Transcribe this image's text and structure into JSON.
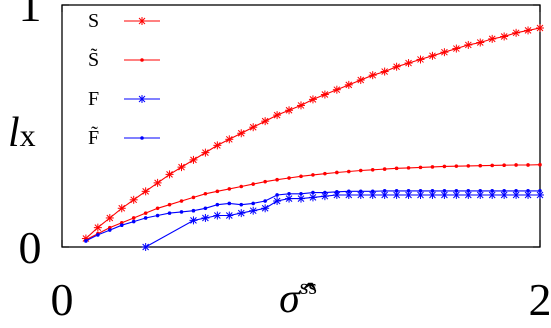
{
  "chart_data": {
    "type": "line",
    "title": "",
    "xlabel": "σ̂",
    "xlabel_superscript": "ss",
    "ylabel": "l",
    "ylabel_subscript": "x",
    "xlim": [
      0,
      2
    ],
    "ylim": [
      0,
      1
    ],
    "x_ticks": [
      "0",
      "2"
    ],
    "y_ticks": [
      "0",
      "1"
    ],
    "grid": false,
    "legend_position": "top-left",
    "series": [
      {
        "name": "S",
        "color": "#ff0000",
        "marker": "star",
        "x": [
          0.1,
          0.15,
          0.2,
          0.25,
          0.3,
          0.35,
          0.4,
          0.45,
          0.5,
          0.55,
          0.6,
          0.65,
          0.7,
          0.75,
          0.8,
          0.85,
          0.9,
          0.95,
          1.0,
          1.05,
          1.1,
          1.15,
          1.2,
          1.25,
          1.3,
          1.35,
          1.4,
          1.45,
          1.5,
          1.55,
          1.6,
          1.65,
          1.7,
          1.75,
          1.8,
          1.85,
          1.9,
          1.95,
          2.0
        ],
        "y": [
          0.035,
          0.08,
          0.12,
          0.16,
          0.195,
          0.23,
          0.265,
          0.3,
          0.33,
          0.36,
          0.39,
          0.42,
          0.445,
          0.47,
          0.495,
          0.52,
          0.545,
          0.565,
          0.585,
          0.61,
          0.63,
          0.65,
          0.67,
          0.69,
          0.71,
          0.725,
          0.745,
          0.76,
          0.775,
          0.79,
          0.805,
          0.82,
          0.835,
          0.845,
          0.86,
          0.87,
          0.885,
          0.895,
          0.905
        ]
      },
      {
        "name": "S̃",
        "color": "#ff0000",
        "marker": "dot",
        "x": [
          0.1,
          0.15,
          0.2,
          0.25,
          0.3,
          0.35,
          0.4,
          0.45,
          0.5,
          0.55,
          0.6,
          0.65,
          0.7,
          0.75,
          0.8,
          0.85,
          0.9,
          0.95,
          1.0,
          1.05,
          1.1,
          1.15,
          1.2,
          1.25,
          1.3,
          1.35,
          1.4,
          1.45,
          1.5,
          1.55,
          1.6,
          1.65,
          1.7,
          1.75,
          1.8,
          1.85,
          1.9,
          1.95,
          2.0
        ],
        "y": [
          0.03,
          0.055,
          0.08,
          0.1,
          0.12,
          0.14,
          0.16,
          0.175,
          0.19,
          0.205,
          0.22,
          0.23,
          0.24,
          0.25,
          0.26,
          0.27,
          0.278,
          0.285,
          0.292,
          0.298,
          0.303,
          0.308,
          0.312,
          0.316,
          0.319,
          0.322,
          0.325,
          0.327,
          0.329,
          0.331,
          0.333,
          0.334,
          0.335,
          0.336,
          0.337,
          0.338,
          0.339,
          0.339,
          0.34
        ]
      },
      {
        "name": "F",
        "color": "#0000ff",
        "marker": "star",
        "x": [
          0.35,
          0.55,
          0.6,
          0.65,
          0.7,
          0.75,
          0.8,
          0.85,
          0.9,
          0.95,
          1.0,
          1.05,
          1.1,
          1.15,
          1.2,
          1.25,
          1.3,
          1.35,
          1.4,
          1.45,
          1.5,
          1.55,
          1.6,
          1.65,
          1.7,
          1.75,
          1.8,
          1.85,
          1.9,
          1.95,
          2.0
        ],
        "y": [
          0.0,
          0.11,
          0.12,
          0.13,
          0.13,
          0.14,
          0.15,
          0.16,
          0.19,
          0.2,
          0.2,
          0.205,
          0.21,
          0.215,
          0.215,
          0.215,
          0.215,
          0.215,
          0.215,
          0.215,
          0.215,
          0.215,
          0.215,
          0.215,
          0.215,
          0.215,
          0.215,
          0.215,
          0.215,
          0.215,
          0.215
        ]
      },
      {
        "name": "F̃",
        "color": "#0000ff",
        "marker": "dot",
        "x": [
          0.1,
          0.15,
          0.2,
          0.25,
          0.3,
          0.35,
          0.4,
          0.45,
          0.5,
          0.55,
          0.6,
          0.65,
          0.7,
          0.75,
          0.8,
          0.85,
          0.9,
          0.95,
          1.0,
          1.05,
          1.1,
          1.15,
          1.2,
          1.25,
          1.3,
          1.35,
          1.4,
          1.45,
          1.5,
          1.55,
          1.6,
          1.65,
          1.7,
          1.75,
          1.8,
          1.85,
          1.9,
          1.95,
          2.0
        ],
        "y": [
          0.025,
          0.05,
          0.07,
          0.09,
          0.105,
          0.12,
          0.13,
          0.14,
          0.145,
          0.15,
          0.16,
          0.175,
          0.18,
          0.175,
          0.18,
          0.19,
          0.215,
          0.22,
          0.22,
          0.225,
          0.225,
          0.228,
          0.23,
          0.23,
          0.23,
          0.232,
          0.232,
          0.232,
          0.232,
          0.232,
          0.232,
          0.232,
          0.232,
          0.232,
          0.232,
          0.232,
          0.232,
          0.232,
          0.232
        ]
      }
    ]
  }
}
